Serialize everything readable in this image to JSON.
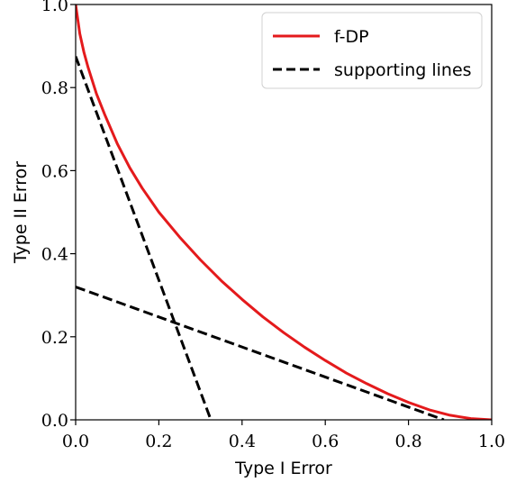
{
  "chart_data": {
    "type": "line",
    "xlabel": "Type I Error",
    "ylabel": "Type II Error",
    "xlim": [
      0.0,
      1.0
    ],
    "ylim": [
      0.0,
      1.0
    ],
    "xticks": [
      "0.0",
      "0.2",
      "0.4",
      "0.6",
      "0.8",
      "1.0"
    ],
    "yticks": [
      "0.0",
      "0.2",
      "0.4",
      "0.6",
      "0.8",
      "1.0"
    ],
    "grid": false,
    "legend_position": "top-right",
    "series": [
      {
        "name": "f-DP",
        "color": "#e41a1c",
        "style": "solid",
        "x": [
          0.0,
          0.01,
          0.02,
          0.03,
          0.05,
          0.07,
          0.1,
          0.13,
          0.16,
          0.2,
          0.25,
          0.3,
          0.35,
          0.4,
          0.45,
          0.5,
          0.55,
          0.6,
          0.65,
          0.7,
          0.75,
          0.8,
          0.85,
          0.9,
          0.95,
          1.0
        ],
        "y": [
          1.0,
          0.93,
          0.885,
          0.848,
          0.785,
          0.735,
          0.665,
          0.607,
          0.558,
          0.5,
          0.44,
          0.385,
          0.335,
          0.29,
          0.248,
          0.21,
          0.175,
          0.143,
          0.113,
          0.087,
          0.063,
          0.042,
          0.024,
          0.011,
          0.003,
          0.0
        ]
      },
      {
        "name": "supporting lines",
        "color": "#000000",
        "style": "dashed",
        "lines": [
          {
            "x": [
              0.0,
              0.325
            ],
            "y": [
              0.875,
              0.0
            ]
          },
          {
            "x": [
              0.0,
              0.885
            ],
            "y": [
              0.32,
              0.0
            ]
          }
        ]
      }
    ]
  }
}
